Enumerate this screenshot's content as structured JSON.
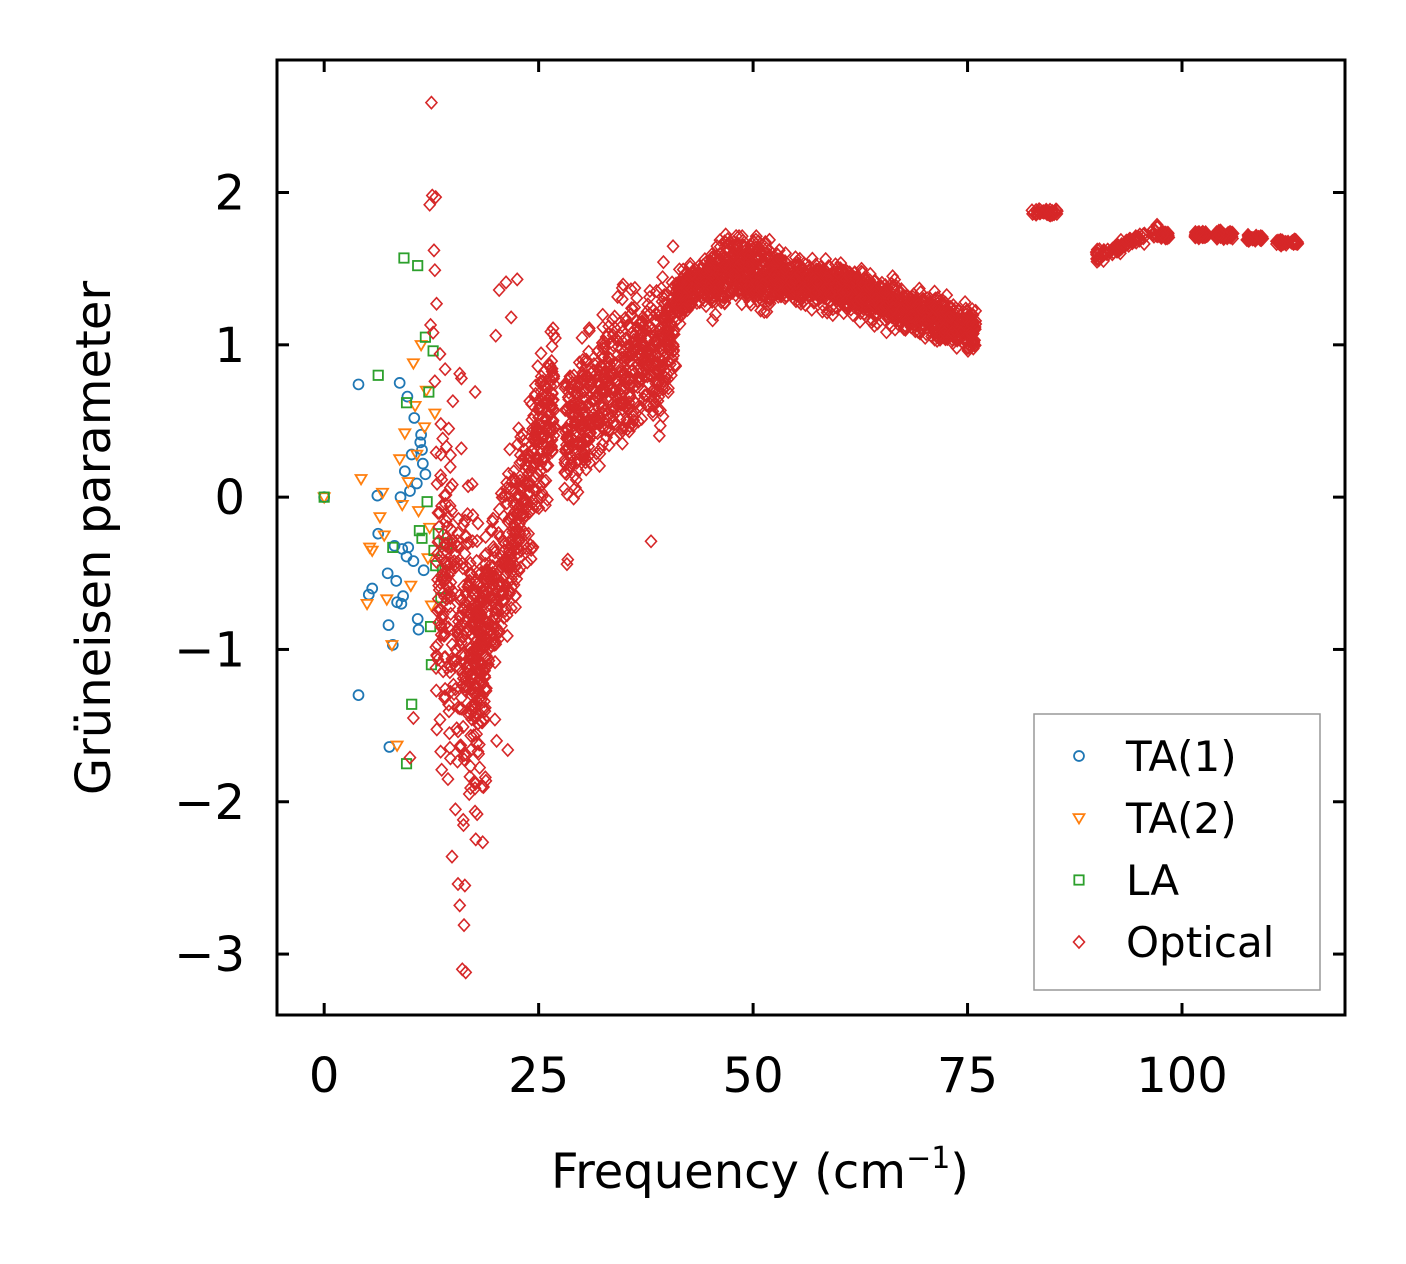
{
  "chart_data": {
    "type": "scatter",
    "title": "",
    "xlabel": "Frequency (cm",
    "xlabel_sup": "−1",
    "xlabel_close": ")",
    "ylabel": "Grüneisen parameter",
    "xlim": [
      -5.5,
      119
    ],
    "ylim": [
      -3.4,
      2.87
    ],
    "x_ticks": [
      0,
      25,
      50,
      75,
      100
    ],
    "y_ticks": [
      -3,
      -2,
      -1,
      0,
      1,
      2
    ],
    "x_tick_labels": [
      "0",
      "25",
      "50",
      "75",
      "100"
    ],
    "y_tick_labels": [
      "−3",
      "−2",
      "−1",
      "0",
      "1",
      "2"
    ],
    "legend_position": "lower-right",
    "series": [
      {
        "name": "TA(1)",
        "marker": "circle",
        "color": "#1f77b4",
        "x": [
          0,
          4.0,
          4.0,
          5.2,
          5.6,
          6.2,
          6.3,
          7.5,
          7.6,
          8.0,
          8.2,
          8.4,
          8.5,
          8.8,
          9.0,
          9.1,
          9.4,
          9.6,
          9.8,
          10.0,
          10.2,
          10.4,
          10.5,
          10.8,
          11.0,
          11.2,
          11.4,
          11.5,
          11.6,
          11.8,
          9.2,
          7.4,
          8.9,
          10.9,
          11.3,
          9.7
        ],
        "y": [
          0.0,
          0.74,
          -1.3,
          -0.64,
          -0.6,
          0.01,
          -0.24,
          -0.84,
          -1.64,
          -0.97,
          -0.32,
          -0.55,
          -0.69,
          0.75,
          -0.7,
          -0.34,
          0.17,
          -0.39,
          -0.33,
          0.04,
          0.28,
          -0.42,
          0.52,
          0.09,
          -0.87,
          0.36,
          0.31,
          0.22,
          -0.48,
          0.15,
          -0.65,
          -0.5,
          0.0,
          -0.8,
          0.41,
          0.66
        ]
      },
      {
        "name": "TA(2)",
        "marker": "triangle-down",
        "color": "#ff7f0e",
        "x": [
          0,
          4.3,
          5.0,
          5.3,
          5.6,
          6.5,
          6.8,
          7.0,
          7.3,
          7.9,
          8.5,
          8.8,
          9.4,
          9.8,
          10.1,
          10.4,
          10.8,
          11.0,
          11.3,
          11.7,
          12.1,
          12.5,
          12.9,
          11.9,
          10.6,
          9.1,
          12.3
        ],
        "y": [
          0.0,
          0.12,
          -0.7,
          -0.33,
          -0.35,
          -0.13,
          0.03,
          -0.25,
          -0.67,
          -0.97,
          -1.63,
          0.25,
          0.42,
          0.1,
          -0.58,
          0.88,
          0.28,
          -0.09,
          1.0,
          0.46,
          -0.4,
          -0.71,
          0.55,
          0.7,
          0.6,
          -0.05,
          -0.2
        ]
      },
      {
        "name": "LA",
        "marker": "square",
        "color": "#2ca02c",
        "x": [
          0,
          6.3,
          8.0,
          9.3,
          9.6,
          9.6,
          10.2,
          10.9,
          11.4,
          11.8,
          12.0,
          12.2,
          12.5,
          12.7,
          13.0,
          13.3,
          13.6,
          14.0,
          14.3,
          12.4,
          11.1,
          12.8,
          13.8
        ],
        "y": [
          0.0,
          0.8,
          -0.33,
          1.57,
          -1.75,
          0.62,
          -1.36,
          1.52,
          -0.27,
          1.05,
          -0.03,
          0.69,
          -1.1,
          0.96,
          -0.45,
          -0.24,
          -0.66,
          -0.3,
          -0.31,
          -0.85,
          -0.22,
          -0.35,
          -0.48
        ]
      },
      {
        "name": "Optical",
        "marker": "diamond",
        "color": "#d62728",
        "x": [],
        "y": []
      }
    ]
  }
}
